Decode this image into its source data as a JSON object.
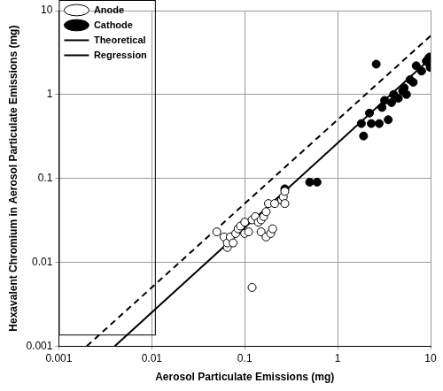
{
  "chart_data": {
    "type": "scatter",
    "x_label": "Aerosol Particulate Emissions (mg)",
    "y_label": "Hexavalent Chromium in Aerosol Particulate Emissions (mg)",
    "log": true,
    "grid": true,
    "legend": "upper left",
    "xlim": [
      0.001,
      10
    ],
    "ylim": [
      0.001,
      10
    ],
    "xticks": [
      0.001,
      0.01,
      0.1,
      1,
      10
    ],
    "yticks": [
      0.001,
      0.01,
      0.1,
      1,
      10
    ],
    "series": [
      {
        "name": "Anode",
        "type": "scatter",
        "marker": "open circle",
        "color": "#000000",
        "x": [
          0.05,
          0.06,
          0.065,
          0.065,
          0.07,
          0.075,
          0.08,
          0.085,
          0.09,
          0.1,
          0.1,
          0.11,
          0.12,
          0.12,
          0.13,
          0.14,
          0.15,
          0.15,
          0.16,
          0.17,
          0.17,
          0.18,
          0.19,
          0.2,
          0.21,
          0.25,
          0.26,
          0.27,
          0.27
        ],
        "values": [
          0.023,
          0.02,
          0.015,
          0.017,
          0.02,
          0.017,
          0.022,
          0.025,
          0.027,
          0.03,
          0.022,
          0.023,
          0.005,
          0.032,
          0.035,
          0.03,
          0.032,
          0.023,
          0.035,
          0.04,
          0.02,
          0.05,
          0.022,
          0.025,
          0.05,
          0.055,
          0.06,
          0.05,
          0.07
        ]
      },
      {
        "name": "Cathode",
        "type": "scatter",
        "marker": "filled circle",
        "color": "#000000",
        "x": [
          0.27,
          0.5,
          0.6,
          1.8,
          1.9,
          2.2,
          2.3,
          2.6,
          2.8,
          3,
          3.2,
          3.5,
          3.8,
          4,
          4.5,
          5,
          5.2,
          5.5,
          6,
          6.5,
          7,
          8,
          9,
          9.5,
          9.8,
          9.8,
          9.9
        ],
        "values": [
          0.075,
          0.09,
          0.09,
          0.45,
          0.32,
          0.6,
          0.45,
          2.3,
          0.45,
          0.7,
          0.85,
          0.5,
          0.8,
          1.0,
          0.9,
          1.1,
          1.2,
          1.0,
          1.5,
          1.4,
          2.2,
          1.9,
          2.5,
          2.7,
          2.3,
          2.8,
          2.1
        ]
      },
      {
        "name": "Theoretical",
        "type": "line",
        "line_style": "dashed",
        "color": "#000000",
        "x": [
          0.002,
          10
        ],
        "values": [
          0.001,
          5
        ]
      },
      {
        "name": "Regression",
        "type": "line",
        "line_style": "solid",
        "color": "#000000",
        "x": [
          0.004,
          10
        ],
        "values": [
          0.001,
          2.7
        ]
      }
    ]
  }
}
